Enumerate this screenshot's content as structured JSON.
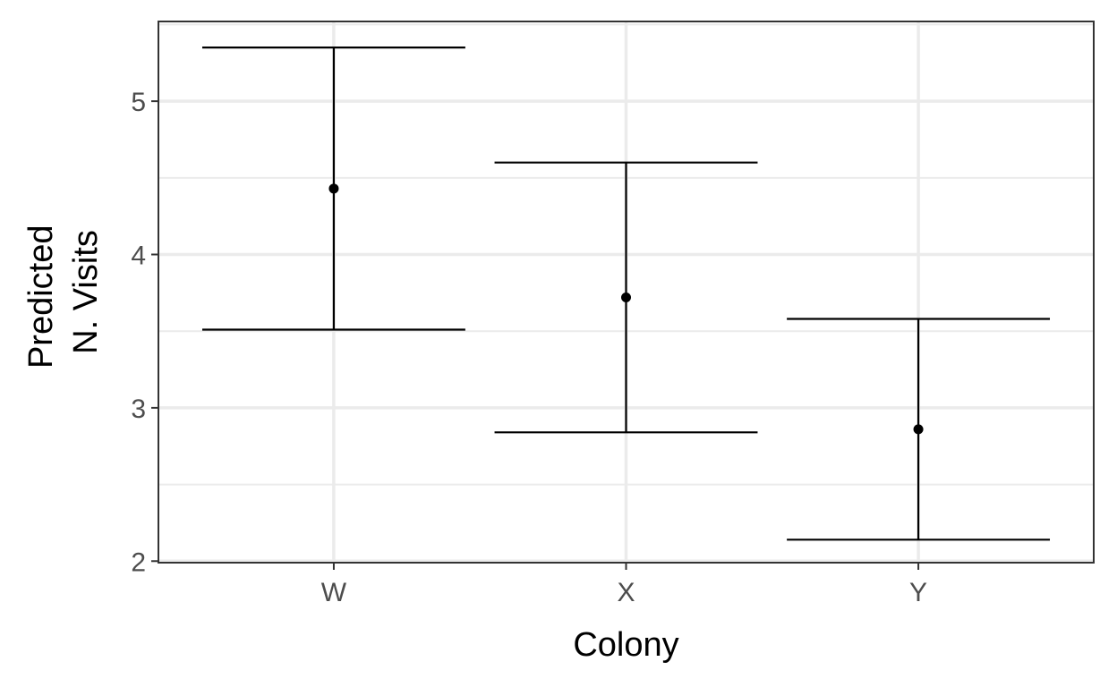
{
  "chart_data": {
    "type": "errorbar",
    "categories": [
      "W",
      "X",
      "Y"
    ],
    "series": [
      {
        "values": [
          4.43,
          3.72,
          2.86
        ],
        "lower": [
          3.51,
          2.84,
          2.14
        ],
        "upper": [
          5.35,
          4.6,
          3.58
        ]
      }
    ],
    "xlabel": "Colony",
    "ylabel_lines": [
      "Predicted",
      "N. Visits"
    ],
    "ylim": [
      1.99,
      5.52
    ],
    "yticks": [
      2,
      3,
      4,
      5
    ],
    "grid": true,
    "colors": {
      "mark": "#000000",
      "grid": "#ebebeb",
      "panel_border": "#333333",
      "tick_label": "#4d4d4d"
    }
  }
}
